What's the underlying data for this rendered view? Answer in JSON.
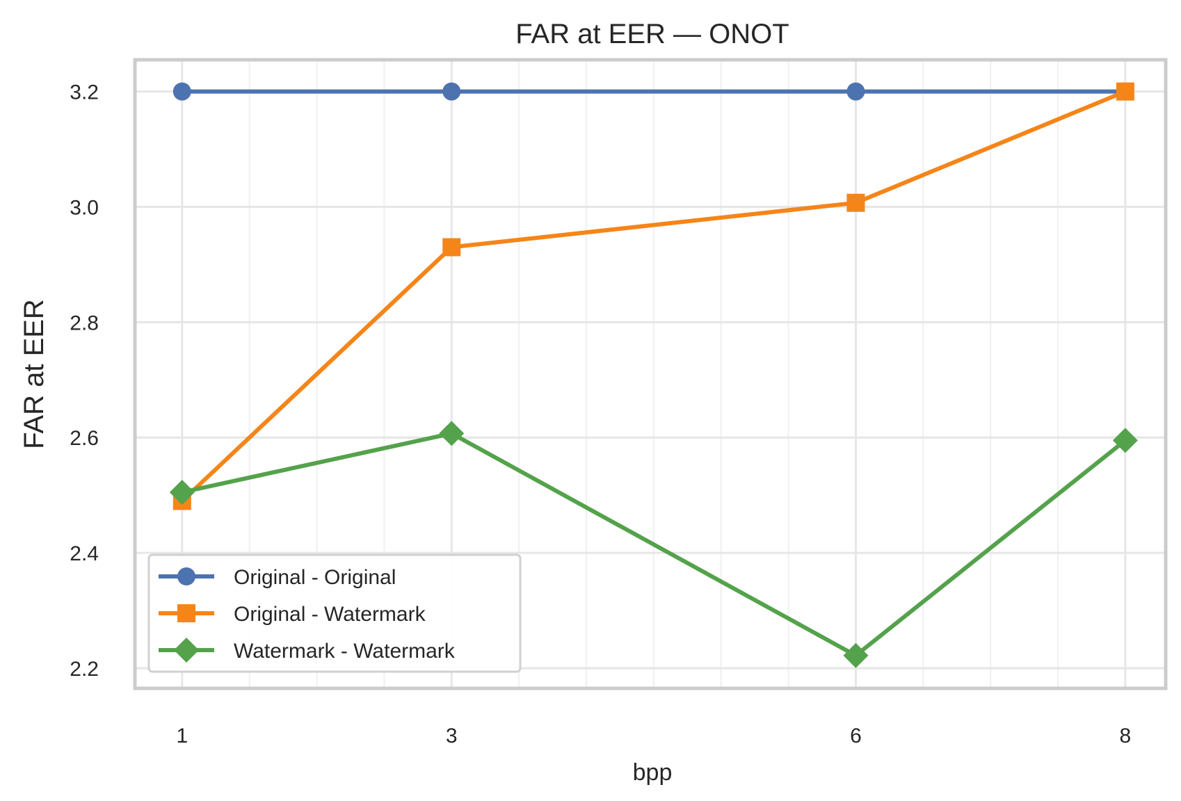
{
  "chart_data": {
    "type": "line",
    "title": "FAR at EER — ONOT",
    "xlabel": "bpp",
    "ylabel": "FAR at EER",
    "x": [
      1,
      3,
      6,
      8
    ],
    "x_tick_labels": [
      "1",
      "3",
      "6",
      "8"
    ],
    "xlim": [
      0.65,
      8.3
    ],
    "ylim": [
      2.165,
      3.255
    ],
    "y_ticks": [
      2.2,
      2.4,
      2.6,
      2.8,
      3.0,
      3.2
    ],
    "y_tick_labels": [
      "2.2",
      "2.4",
      "2.6",
      "2.8",
      "3.0",
      "3.2"
    ],
    "grid": true,
    "minor_grid": true,
    "legend_position": "lower-left",
    "series": [
      {
        "name": "Original - Original",
        "values": [
          3.2,
          3.2,
          3.2,
          3.2
        ],
        "color": "#4c72b0",
        "marker": "circle",
        "show_last_marker": false
      },
      {
        "name": "Original - Watermark",
        "values": [
          2.49,
          2.93,
          3.007,
          3.2
        ],
        "color": "#f58518",
        "marker": "square",
        "show_last_marker": true
      },
      {
        "name": "Watermark - Watermark",
        "values": [
          2.505,
          2.607,
          2.222,
          2.595
        ],
        "color": "#54a24b",
        "marker": "diamond",
        "show_last_marker": true
      }
    ]
  }
}
